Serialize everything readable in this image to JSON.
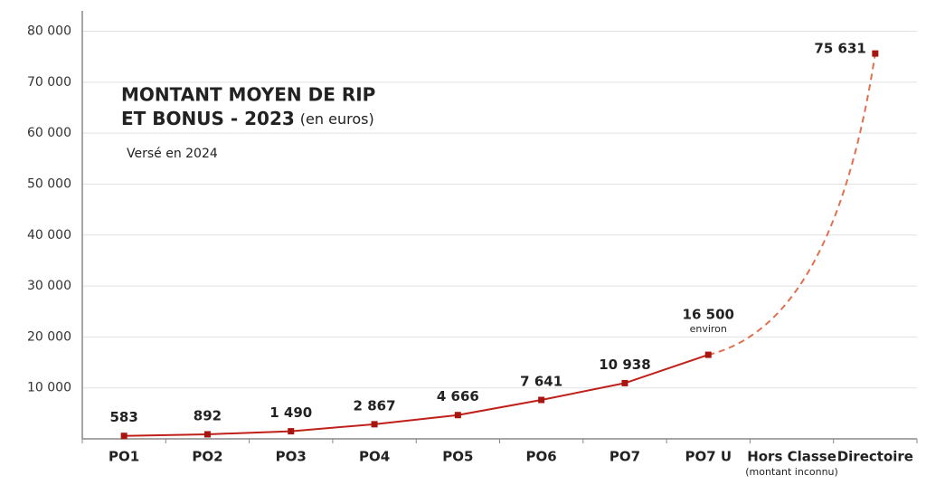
{
  "chart_data": {
    "type": "line",
    "title_line1": "MONTANT MOYEN DE RIP",
    "title_line2": "ET BONUS - 2023",
    "title_unit": "(en euros)",
    "subtitle": "Versé en 2024",
    "categories": [
      "PO1",
      "PO2",
      "PO3",
      "PO4",
      "PO5",
      "PO6",
      "PO7",
      "PO7 U",
      "Hors Classe",
      "Directoire"
    ],
    "category_note": {
      "index": 8,
      "text": "(montant inconnu)"
    },
    "values": [
      583,
      892,
      1490,
      2867,
      4666,
      7641,
      10938,
      16500,
      null,
      75631
    ],
    "value_labels": [
      "583",
      "892",
      "1 490",
      "2 867",
      "4 666",
      "7 641",
      "10 938",
      "16 500",
      null,
      "75 631"
    ],
    "annotation": {
      "index": 7,
      "text": "environ"
    },
    "color": "#c0201a",
    "dashed_color": "#e0704f",
    "ylim": [
      0,
      84000
    ],
    "yticks": [
      {
        "value": 10000,
        "label": "10 000"
      },
      {
        "value": 20000,
        "label": "20 000"
      },
      {
        "value": 30000,
        "label": "30 000"
      },
      {
        "value": 40000,
        "label": "40 000"
      },
      {
        "value": 50000,
        "label": "50 000"
      },
      {
        "value": 60000,
        "label": "60 000"
      },
      {
        "value": 70000,
        "label": "70 000"
      },
      {
        "value": 80000,
        "label": "80 000"
      }
    ],
    "grid": true
  }
}
